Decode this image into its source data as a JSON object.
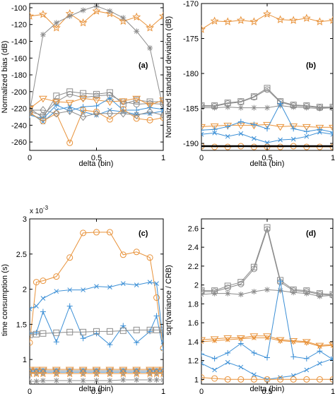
{
  "colors": {
    "gray": "#8c8c8c",
    "orange": "#e8923a",
    "blue": "#3b8fd6",
    "black": "#000000",
    "silver": "#a9a9a9"
  },
  "chart_data": [
    {
      "type": "line",
      "panel_label": "(a)",
      "xlabel": "delta (bin)",
      "ylabel": "Normalized bias (dB)",
      "xlim": [
        0,
        1
      ],
      "ylim": [
        -270,
        -95
      ],
      "xticks": [
        0,
        0.5,
        1
      ],
      "xtick_labels": [
        "0",
        "0.5",
        "1"
      ],
      "yticks": [
        -260,
        -240,
        -220,
        -200,
        -180,
        -160,
        -140,
        -120,
        -100
      ],
      "ytick_labels": [
        "-260",
        "-240",
        "-220",
        "-200",
        "-180",
        "-160",
        "-140",
        "-120",
        "-100"
      ],
      "x": [
        0,
        0.1,
        0.2,
        0.3,
        0.4,
        0.5,
        0.6,
        0.7,
        0.8,
        0.9,
        1.0
      ],
      "series": [
        {
          "color": "orange",
          "marker": "star",
          "values": [
            -110,
            -108,
            -124,
            -107,
            -118,
            -104,
            -107,
            -116,
            -111,
            -124,
            -110
          ]
        },
        {
          "color": "gray",
          "marker": "asterisk",
          "values": [
            -224,
            -132,
            -118,
            -110,
            -103,
            -98,
            -104,
            -112,
            -128,
            -148,
            -220
          ]
        },
        {
          "color": "gray",
          "marker": "square",
          "values": [
            -220,
            -231,
            -205,
            -200,
            -202,
            -203,
            -201,
            -215,
            -210,
            -212,
            -212
          ]
        },
        {
          "color": "gray",
          "marker": "circle",
          "values": [
            -224,
            -228,
            -212,
            -203,
            -207,
            -205,
            -204,
            -212,
            -215,
            -214,
            -215
          ]
        },
        {
          "color": "orange",
          "marker": "triangle-down",
          "values": [
            -220,
            -208,
            -212,
            -213,
            -208,
            -210,
            -212,
            -211,
            -208,
            -216,
            -210
          ]
        },
        {
          "color": "blue",
          "marker": "plus",
          "values": [
            -228,
            -232,
            -216,
            -223,
            -218,
            -217,
            -208,
            -222,
            -222,
            -219,
            -221
          ]
        },
        {
          "color": "blue",
          "marker": "x",
          "values": [
            -225,
            -236,
            -222,
            -218,
            -224,
            -228,
            -222,
            -224,
            -227,
            -226,
            -223
          ]
        },
        {
          "color": "orange",
          "marker": "circle",
          "values": [
            -225,
            -235,
            -226,
            -261,
            -222,
            -224,
            -233,
            -221,
            -232,
            -234,
            -231
          ]
        },
        {
          "color": "gray",
          "marker": "diamond",
          "values": [
            -222,
            -222,
            -226,
            -223,
            -230,
            -226,
            -226,
            -226,
            -228,
            -224,
            -228
          ]
        }
      ]
    },
    {
      "type": "line",
      "panel_label": "(b)",
      "xlabel": "delta (bin)",
      "ylabel": "Normalized standard deviation (dB)",
      "xlim": [
        0,
        1
      ],
      "ylim": [
        -191,
        -170
      ],
      "xticks": [
        0,
        0.5,
        1
      ],
      "xtick_labels": [
        "0",
        "0.5",
        "1"
      ],
      "yticks": [
        -190,
        -185,
        -180,
        -175,
        -170
      ],
      "ytick_labels": [
        "-190",
        "-185",
        "-180",
        "-175",
        "-170"
      ],
      "x": [
        0,
        0.1,
        0.2,
        0.3,
        0.4,
        0.5,
        0.6,
        0.7,
        0.8,
        0.9,
        1.0
      ],
      "series": [
        {
          "color": "orange",
          "marker": "star",
          "values": [
            -173.7,
            -172.5,
            -172.6,
            -172.4,
            -172.6,
            -171.5,
            -172.3,
            -172.4,
            -172.1,
            -172.6,
            -172.4
          ]
        },
        {
          "color": "gray",
          "marker": "square",
          "values": [
            -184.6,
            -184.6,
            -184.2,
            -184.0,
            -183.3,
            -182.1,
            -184.0,
            -184.5,
            -184.6,
            -184.8,
            -184.8
          ]
        },
        {
          "color": "gray",
          "marker": "circle",
          "values": [
            -184.7,
            -184.7,
            -184.3,
            -184.1,
            -183.4,
            -182.3,
            -184.1,
            -184.6,
            -184.7,
            -184.9,
            -184.9
          ]
        },
        {
          "color": "gray",
          "marker": "asterisk",
          "values": [
            -184.9,
            -184.9,
            -184.8,
            -184.9,
            -184.9,
            -184.9,
            -184.6,
            -184.8,
            -184.9,
            -185.0,
            -184.9
          ]
        },
        {
          "color": "orange",
          "marker": "triangle-down",
          "values": [
            -187.6,
            -187.5,
            -187.4,
            -187.4,
            -187.4,
            -187.3,
            -187.6,
            -187.5,
            -187.6,
            -187.7,
            -187.7
          ]
        },
        {
          "color": "blue",
          "marker": "plus",
          "values": [
            -188.1,
            -188.0,
            -187.6,
            -186.9,
            -187.3,
            -187.9,
            -184.3,
            -187.9,
            -188.3,
            -188.0,
            -188.4
          ]
        },
        {
          "color": "blue",
          "marker": "x",
          "values": [
            -188.7,
            -188.5,
            -189.0,
            -188.6,
            -189.3,
            -189.9,
            -189.5,
            -189.4,
            -189.0,
            -188.4,
            -188.7
          ]
        },
        {
          "color": "orange",
          "marker": "circle",
          "values": [
            -190.4,
            -190.5,
            -190.5,
            -190.4,
            -190.5,
            -190.5,
            -190.5,
            -190.4,
            -190.5,
            -190.5,
            -190.5
          ]
        },
        {
          "color": "black",
          "marker": "none",
          "values": [
            -190.4,
            -190.4,
            -190.4,
            -190.4,
            -190.4,
            -190.4,
            -190.4,
            -190.4,
            -190.4,
            -190.4,
            -190.4
          ]
        }
      ]
    },
    {
      "type": "line",
      "panel_label": "(c)",
      "xlabel": "delta (bin)",
      "ylabel": "time consumption (s)",
      "axis_multiplier": "x 10",
      "axis_multiplier_exponent": "-3",
      "xlim": [
        0,
        1
      ],
      "ylim": [
        0.65,
        3.0
      ],
      "xticks": [
        0,
        0.5,
        1
      ],
      "xtick_labels": [
        "0",
        "0.5",
        "1"
      ],
      "yticks": [
        1,
        1.5,
        2,
        2.5,
        3
      ],
      "ytick_labels": [
        "1",
        "1.5",
        "2",
        "2.5",
        "3"
      ],
      "x": [
        0,
        0.05,
        0.1,
        0.2,
        0.3,
        0.4,
        0.5,
        0.6,
        0.7,
        0.8,
        0.9,
        0.95,
        1.0
      ],
      "series": [
        {
          "color": "orange",
          "marker": "circle",
          "values": [
            1.24,
            2.1,
            2.12,
            2.18,
            2.45,
            2.8,
            2.81,
            2.81,
            2.49,
            2.53,
            2.45,
            1.88,
            1.16
          ]
        },
        {
          "color": "blue",
          "marker": "x",
          "values": [
            1.72,
            1.76,
            1.87,
            1.97,
            1.99,
            1.99,
            2.04,
            2.03,
            2.08,
            2.06,
            2.1,
            2.08,
            1.25
          ]
        },
        {
          "color": "blue",
          "marker": "plus",
          "values": [
            1.37,
            1.38,
            1.68,
            1.25,
            1.76,
            1.3,
            1.37,
            1.21,
            1.48,
            1.24,
            1.4,
            1.62,
            1.14
          ]
        },
        {
          "color": "gray",
          "marker": "square",
          "values": [
            1.35,
            1.36,
            1.37,
            1.38,
            1.39,
            1.39,
            1.4,
            1.4,
            1.41,
            1.42,
            1.42,
            1.42,
            1.42
          ]
        },
        {
          "color": "gray",
          "marker": "triangle-down",
          "values": [
            0.84,
            0.84,
            0.84,
            0.84,
            0.84,
            0.84,
            0.84,
            0.84,
            0.84,
            0.84,
            0.84,
            0.84,
            0.84
          ]
        },
        {
          "color": "orange",
          "marker": "triangle-down",
          "values": [
            0.86,
            0.86,
            0.86,
            0.86,
            0.86,
            0.86,
            0.86,
            0.86,
            0.86,
            0.86,
            0.86,
            0.86,
            0.86
          ]
        },
        {
          "color": "blue",
          "marker": "diamond",
          "values": [
            0.82,
            0.82,
            0.82,
            0.82,
            0.82,
            0.82,
            0.82,
            0.82,
            0.82,
            0.82,
            0.82,
            0.82,
            0.82
          ]
        },
        {
          "color": "orange",
          "marker": "star",
          "values": [
            0.8,
            0.8,
            0.8,
            0.8,
            0.8,
            0.8,
            0.8,
            0.8,
            0.8,
            0.8,
            0.8,
            0.8,
            0.8
          ]
        },
        {
          "color": "gray",
          "marker": "asterisk",
          "values": [
            0.69,
            0.69,
            0.7,
            0.7,
            0.7,
            0.7,
            0.7,
            0.7,
            0.71,
            0.71,
            0.71,
            0.71,
            0.71
          ]
        }
      ]
    },
    {
      "type": "line",
      "panel_label": "(d)",
      "xlabel": "delta (bin)",
      "ylabel": "sqrt(variance / CRB)",
      "xlim": [
        0,
        1
      ],
      "ylim": [
        0.95,
        2.7
      ],
      "xticks": [
        0,
        0.5,
        1
      ],
      "xtick_labels": [
        "0",
        "0.5",
        "1"
      ],
      "yticks": [
        1,
        1.2,
        1.4,
        1.6,
        1.8,
        2,
        2.2,
        2.4,
        2.6
      ],
      "ytick_labels": [
        "1",
        "1.2",
        "1.4",
        "1.6",
        "1.8",
        "2",
        "2.2",
        "2.4",
        "2.6"
      ],
      "x": [
        0,
        0.1,
        0.2,
        0.3,
        0.4,
        0.5,
        0.6,
        0.7,
        0.8,
        0.9,
        1.0
      ],
      "series": [
        {
          "color": "gray",
          "marker": "square",
          "values": [
            1.94,
            1.94,
            1.99,
            2.03,
            2.19,
            2.61,
            2.05,
            1.95,
            1.94,
            1.91,
            1.9
          ]
        },
        {
          "color": "gray",
          "marker": "circle",
          "values": [
            1.93,
            1.93,
            1.97,
            2.01,
            2.17,
            2.59,
            2.03,
            1.94,
            1.93,
            1.9,
            1.89
          ]
        },
        {
          "color": "gray",
          "marker": "asterisk",
          "values": [
            1.9,
            1.91,
            1.91,
            1.9,
            1.93,
            1.95,
            1.94,
            1.92,
            1.91,
            1.88,
            1.89
          ]
        },
        {
          "color": "orange",
          "marker": "triangle-down",
          "values": [
            1.42,
            1.43,
            1.44,
            1.44,
            1.46,
            1.46,
            1.42,
            1.41,
            1.4,
            1.36,
            1.37
          ]
        },
        {
          "color": "orange",
          "marker": "x",
          "values": [
            1.4,
            1.41,
            1.42,
            1.43,
            1.44,
            1.44,
            1.41,
            1.4,
            1.39,
            1.35,
            1.36
          ]
        },
        {
          "color": "blue",
          "marker": "plus",
          "values": [
            1.27,
            1.22,
            1.28,
            1.38,
            1.28,
            1.23,
            2.04,
            1.24,
            1.22,
            1.3,
            1.21
          ]
        },
        {
          "color": "blue",
          "marker": "x",
          "values": [
            1.17,
            1.1,
            1.18,
            1.13,
            1.05,
            1.0,
            1.02,
            1.04,
            1.1,
            1.17,
            1.22
          ]
        },
        {
          "color": "orange",
          "marker": "circle",
          "values": [
            1.02,
            1.01,
            1.0,
            1.0,
            1.0,
            1.0,
            1.0,
            1.0,
            1.0,
            1.0,
            1.0
          ]
        }
      ]
    }
  ]
}
